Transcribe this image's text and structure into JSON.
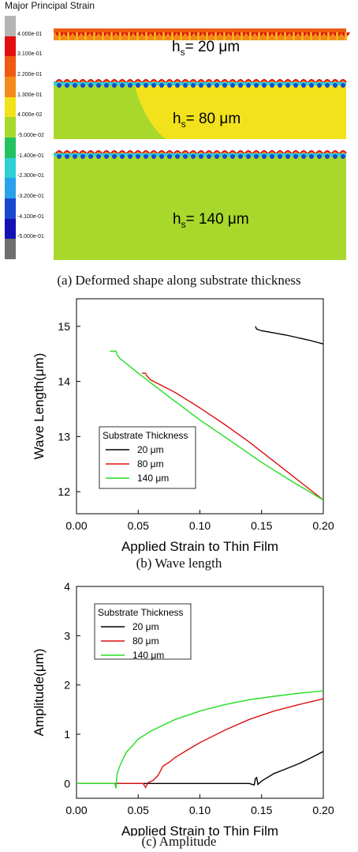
{
  "panel_a": {
    "legend_title": "Major Principal Strain",
    "scale_labels": [
      "4.000e-01",
      "3.100e-01",
      "2.200e-01",
      "1.300e-01",
      "4.000e-02",
      "-5.000e-02",
      "-1.400e-01",
      "-2.300e-01",
      "-3.200e-01",
      "-4.100e-01",
      "-5.000e-01"
    ],
    "scale_colors": [
      "#b5b5b5",
      "#e01010",
      "#ee5a12",
      "#f28b1a",
      "#f2e21c",
      "#a8d82c",
      "#22c262",
      "#2fd0d6",
      "#2aa1e8",
      "#1a48cf",
      "#1412b5",
      "#6e6e6e"
    ],
    "labels": [
      {
        "prefix": "h",
        "sub": "s",
        "value": "= 20 μm"
      },
      {
        "prefix": "h",
        "sub": "s",
        "value": "= 80 μm"
      },
      {
        "prefix": "h",
        "sub": "s",
        "value": "= 140 μm"
      }
    ],
    "caption": "(a) Deformed shape along substrate thickness"
  },
  "colors": {
    "s20": "#000000",
    "s80": "#dd1111",
    "s140": "#22dd22"
  },
  "chart_data": [
    {
      "type": "line",
      "xlabel": "Applied Strain to Thin Film",
      "ylabel": "Wave Length(μm)",
      "xlim": [
        0.0,
        0.2
      ],
      "ylim": [
        11.6,
        15.5
      ],
      "xticks": [
        "0.00",
        "0.05",
        "0.10",
        "0.15",
        "0.20"
      ],
      "yticks": [
        "12",
        "13",
        "14",
        "15"
      ],
      "legend_title": "Substrate Thickness",
      "legend_position": "lower-left",
      "caption": "(b) Wave length",
      "series": [
        {
          "name": "20 μm",
          "x": [
            0.145,
            0.146,
            0.15,
            0.16,
            0.17,
            0.18,
            0.19,
            0.2
          ],
          "y": [
            15.0,
            14.95,
            14.92,
            14.88,
            14.84,
            14.79,
            14.74,
            14.68
          ]
        },
        {
          "name": "80 μm",
          "x": [
            0.053,
            0.056,
            0.057,
            0.06,
            0.08,
            0.1,
            0.12,
            0.14,
            0.16,
            0.18,
            0.2
          ],
          "y": [
            14.15,
            14.15,
            14.1,
            14.03,
            13.8,
            13.52,
            13.22,
            12.9,
            12.55,
            12.2,
            11.85
          ]
        },
        {
          "name": "140 μm",
          "x": [
            0.027,
            0.032,
            0.033,
            0.035,
            0.05,
            0.075,
            0.1,
            0.125,
            0.15,
            0.175,
            0.2
          ],
          "y": [
            14.55,
            14.55,
            14.48,
            14.42,
            14.15,
            13.72,
            13.3,
            12.92,
            12.53,
            12.18,
            11.85
          ]
        }
      ]
    },
    {
      "type": "line",
      "xlabel": "Applied Strain to Thin Film",
      "ylabel": "Amplitude(μm)",
      "xlim": [
        0.0,
        0.2
      ],
      "ylim": [
        -0.3,
        4.0
      ],
      "xticks": [
        "0.00",
        "0.05",
        "0.10",
        "0.15",
        "0.20"
      ],
      "yticks": [
        "0",
        "1",
        "2",
        "3",
        "4"
      ],
      "legend_title": "Substrate Thickness",
      "legend_position": "top-left",
      "caption": "(c) Amplitude",
      "series": [
        {
          "name": "20 μm",
          "x": [
            0.0,
            0.05,
            0.1,
            0.14,
            0.144,
            0.145,
            0.146,
            0.147,
            0.15,
            0.16,
            0.17,
            0.18,
            0.19,
            0.2
          ],
          "y": [
            0.0,
            0.0,
            0.0,
            0.0,
            -0.03,
            0.1,
            0.12,
            -0.02,
            0.05,
            0.2,
            0.3,
            0.4,
            0.52,
            0.65
          ]
        },
        {
          "name": "80 μm",
          "x": [
            0.0,
            0.05,
            0.054,
            0.056,
            0.058,
            0.062,
            0.066,
            0.07,
            0.075,
            0.08,
            0.09,
            0.1,
            0.12,
            0.14,
            0.16,
            0.18,
            0.2
          ],
          "y": [
            0.0,
            0.0,
            0.0,
            -0.08,
            0.02,
            0.06,
            0.16,
            0.35,
            0.43,
            0.53,
            0.68,
            0.83,
            1.08,
            1.3,
            1.47,
            1.6,
            1.72
          ]
        },
        {
          "name": "140 μm",
          "x": [
            0.0,
            0.031,
            0.032,
            0.033,
            0.035,
            0.04,
            0.05,
            0.06,
            0.08,
            0.1,
            0.12,
            0.14,
            0.16,
            0.18,
            0.2
          ],
          "y": [
            0.0,
            0.0,
            -0.1,
            0.2,
            0.35,
            0.62,
            0.9,
            1.06,
            1.3,
            1.47,
            1.6,
            1.7,
            1.77,
            1.83,
            1.88
          ]
        }
      ]
    }
  ]
}
